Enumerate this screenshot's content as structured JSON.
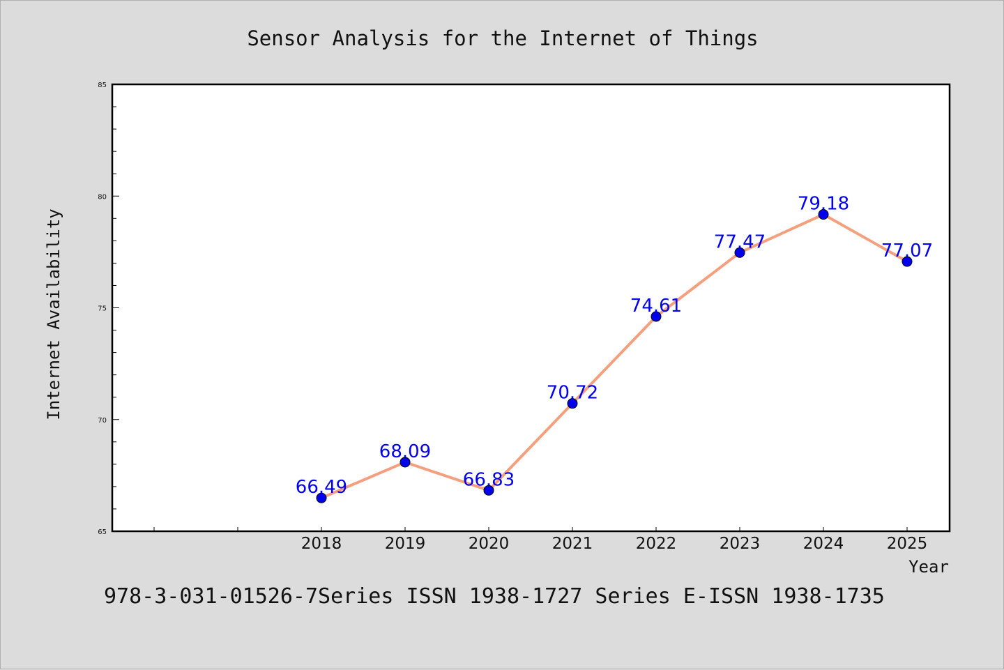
{
  "chart_data": {
    "type": "line",
    "title": "Sensor Analysis for the Internet of Things",
    "xlabel": "Year",
    "ylabel": "Internet Availability",
    "categories": [
      "2018",
      "2019",
      "2020",
      "2021",
      "2022",
      "2023",
      "2024",
      "2025"
    ],
    "series": [
      {
        "values": [
          66.49,
          68.09,
          66.83,
          70.72,
          74.61,
          77.47,
          79.18,
          77.07
        ],
        "line_color": "#f4a07e",
        "marker_color": "#0000ee",
        "label_color": "#0000ee"
      }
    ],
    "data_labels": [
      "66.49",
      "68.09",
      "66.83",
      "70.72",
      "74.61",
      "77.47",
      "79.18",
      "77.07"
    ],
    "ylim": [
      65,
      85
    ],
    "yticks": [
      "65",
      "70",
      "75",
      "80",
      "85"
    ],
    "grid": false,
    "legend": "none"
  },
  "footer": {
    "text": "978-3-031-01526-7Series ISSN 1938-1727 Series E-ISSN 1938-1735"
  }
}
